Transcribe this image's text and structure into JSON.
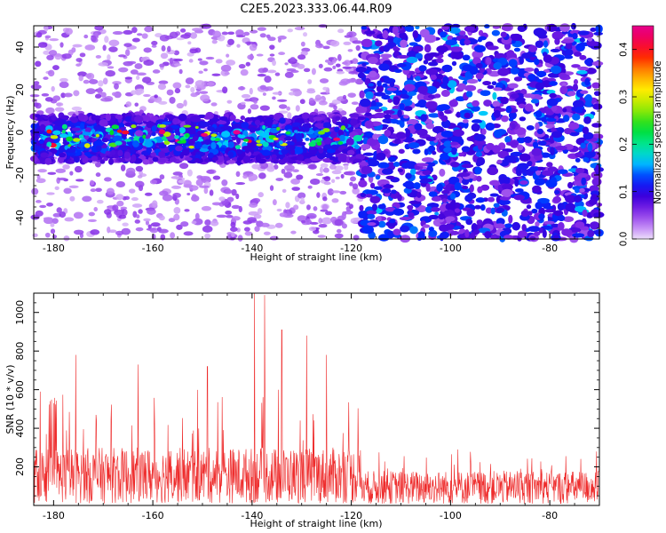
{
  "title": "C2E5.2023.333.06.44.R09",
  "chart_data": [
    {
      "type": "heatmap",
      "xlabel": "Height of straight line (km)",
      "ylabel": "Frequency (Hz)",
      "xlim": [
        -184,
        -70
      ],
      "ylim": [
        -50,
        50
      ],
      "xticks": [
        -180,
        -160,
        -140,
        -120,
        -100,
        -80
      ],
      "yticks": [
        -40,
        -20,
        0,
        20,
        40
      ],
      "colorbar": {
        "label": "Normalized spectral amplitude",
        "range": [
          0,
          0.45
        ],
        "ticks": [
          0.0,
          0.1,
          0.2,
          0.3,
          0.4
        ],
        "colormap": "rainbow: light lavender (low) - purple - blue - cyan - green - yellow - orange - red - magenta (high)"
      },
      "features": [
        {
          "description": "strong signal band near 0 Hz",
          "x_range": [
            -184,
            -118
          ],
          "y_range": [
            -14,
            8
          ],
          "peak_value": 0.45
        },
        {
          "description": "sparse low-amplitude speckle",
          "x_range": [
            -184,
            -118
          ],
          "y_range": [
            -50,
            50
          ],
          "typical_value": 0.03
        },
        {
          "description": "dense noise speckle over full band",
          "x_range": [
            -118,
            -70
          ],
          "y_range": [
            -50,
            50
          ],
          "typical_value": 0.07
        }
      ]
    },
    {
      "type": "line",
      "xlabel": "Height of straight line (km)",
      "ylabel": "SNR (10 * v/v)",
      "xlim": [
        -184,
        -70
      ],
      "ylim": [
        0,
        1100
      ],
      "xticks": [
        -180,
        -160,
        -140,
        -120,
        -100,
        -80
      ],
      "yticks": [
        200,
        400,
        600,
        800,
        1000
      ],
      "series_color": "#ee2b2b",
      "envelope": [
        {
          "x_range": [
            -184,
            -118
          ],
          "baseline": 200,
          "typical_peak": 600
        },
        {
          "x_range": [
            -118,
            -70
          ],
          "baseline": 120,
          "typical_peak": 300
        }
      ],
      "peaks": [
        {
          "x": -175.5,
          "y": 780
        },
        {
          "x": -163.0,
          "y": 730
        },
        {
          "x": -149.0,
          "y": 720
        },
        {
          "x": -139.5,
          "y": 1100
        },
        {
          "x": -137.5,
          "y": 1090
        },
        {
          "x": -134.0,
          "y": 910
        },
        {
          "x": -129.0,
          "y": 880
        },
        {
          "x": -125.0,
          "y": 780
        }
      ]
    }
  ]
}
